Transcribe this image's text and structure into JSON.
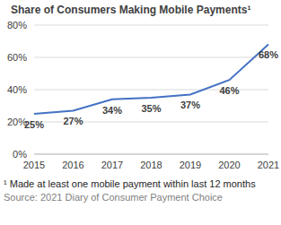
{
  "chart_data": {
    "type": "line",
    "title": "Share of Consumers Making Mobile Payments¹",
    "categories": [
      "2015",
      "2016",
      "2017",
      "2018",
      "2019",
      "2020",
      "2021"
    ],
    "values": [
      25,
      27,
      34,
      35,
      37,
      46,
      68
    ],
    "value_labels": [
      "25%",
      "27%",
      "34%",
      "35%",
      "37%",
      "46%",
      "68%"
    ],
    "color": "#4472c4",
    "ylim": [
      0,
      80
    ],
    "yticks": [
      {
        "value": 0,
        "label": "0%"
      },
      {
        "value": 20,
        "label": "20%"
      },
      {
        "value": 40,
        "label": "40%"
      },
      {
        "value": 60,
        "label": "60%"
      },
      {
        "value": 80,
        "label": "80%"
      }
    ],
    "grid": true,
    "data_labels": true,
    "annotations": [
      "¹ Made at least one mobile payment within last 12 months",
      "Source: 2021 Diary of Consumer Payment Choice"
    ]
  }
}
